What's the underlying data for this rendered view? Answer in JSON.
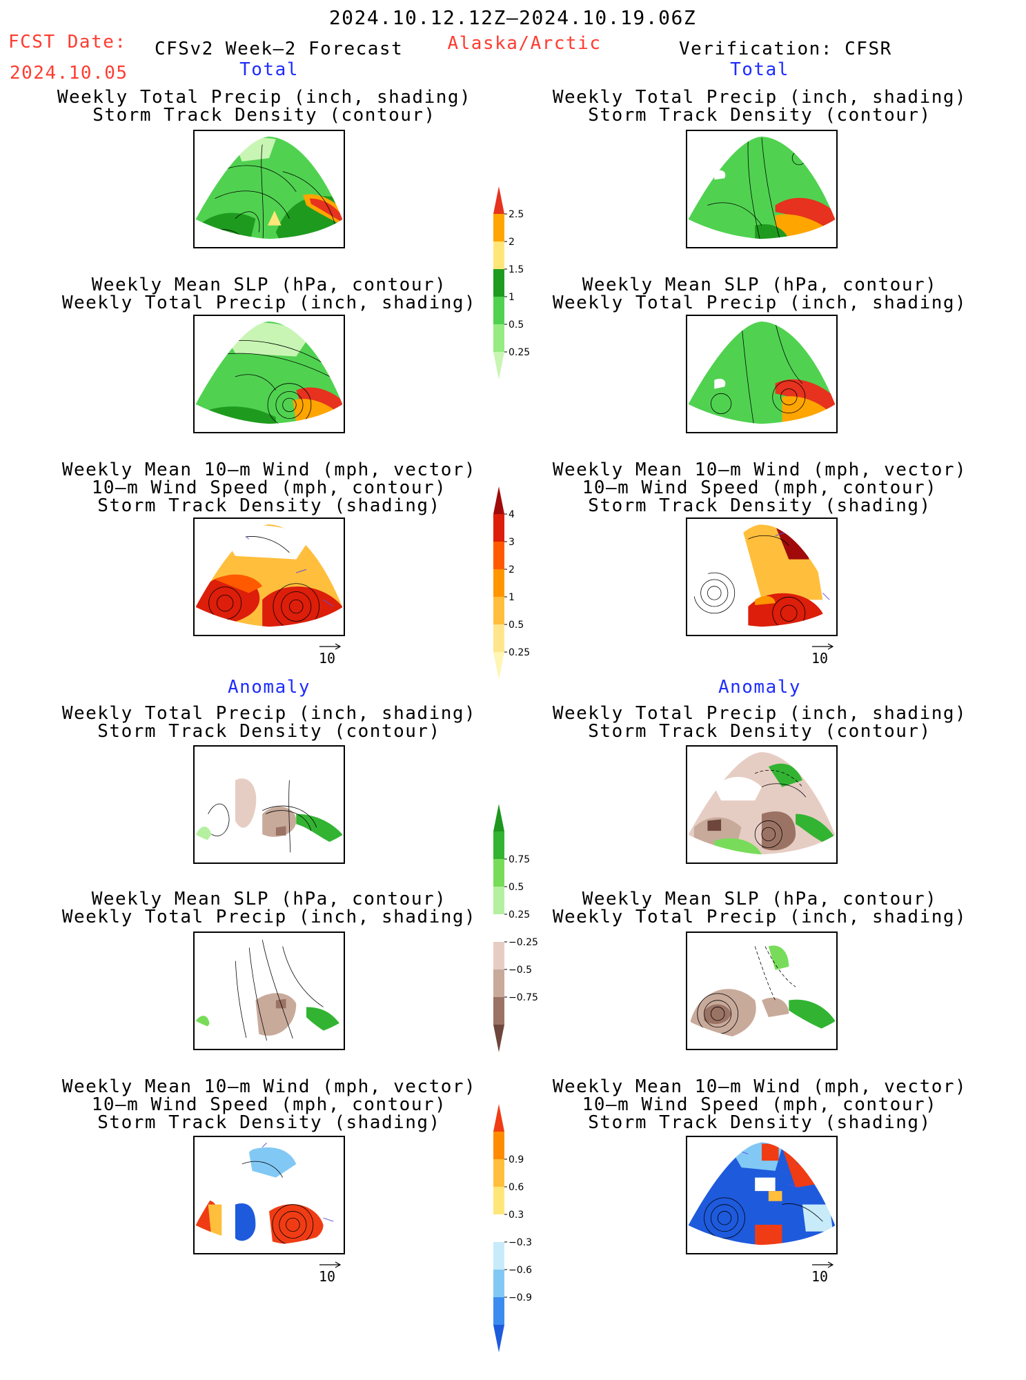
{
  "header": {
    "period": "2024.10.12.12Z—2024.10.19.06Z",
    "fcst_label": "FCST Date:",
    "fcst_date": "2024.10.05",
    "model": "CFSv2 Week—2 Forecast",
    "region": "Alaska/Arctic",
    "verification": "Verification: CFSR"
  },
  "sections": {
    "total": "Total",
    "anomaly": "Anomaly"
  },
  "titles": {
    "precip_storm": [
      "Weekly Total Precip (inch, shading)",
      "Storm Track Density (contour)"
    ],
    "slp_precip": [
      "Weekly Mean SLP (hPa, contour)",
      "Weekly Total Precip (inch, shading)"
    ],
    "wind_storm": [
      "Weekly Mean 10—m Wind (mph, vector)",
      "10—m Wind Speed (mph, contour)",
      "Storm Track Density (shading)"
    ]
  },
  "vector_ref": "10",
  "colorbars": {
    "precip_total": {
      "labels": [
        "0.25",
        "0.5",
        "1",
        "1.5",
        "2",
        "2.5"
      ],
      "colors": [
        "#c8f5b4",
        "#96eb82",
        "#50d250",
        "#1e9b1e",
        "#ffe678",
        "#ffa500",
        "#e6321e"
      ]
    },
    "storm_total": {
      "labels": [
        "0.25",
        "0.5",
        "1",
        "2",
        "3",
        "4"
      ],
      "colors": [
        "#fff5b4",
        "#ffe68c",
        "#ffbe3c",
        "#ff9600",
        "#ff5a00",
        "#dc1e0a",
        "#a00a0a"
      ]
    },
    "precip_anom": {
      "labels": [
        "−0.75",
        "−0.5",
        "−0.25",
        "0.25",
        "0.5",
        "0.75"
      ],
      "colors": [
        "#6e463c",
        "#9b7364",
        "#c8aa9b",
        "#e6cdc3",
        "#ffffff",
        "#b4f0a0",
        "#78dc5a",
        "#32b432",
        "#1e961e"
      ]
    },
    "storm_anom": {
      "labels": [
        "−0.9",
        "−0.6",
        "−0.3",
        "0.3",
        "0.6",
        "0.9"
      ],
      "colors": [
        "#1e5adc",
        "#3c8cf0",
        "#82c8f5",
        "#c8ebfa",
        "#ffffff",
        "#ffe678",
        "#ffbe3c",
        "#ff8c00",
        "#f03c14"
      ]
    }
  },
  "colors": {
    "header_red": "#ff3b30",
    "section_blue": "#1e2cff"
  }
}
